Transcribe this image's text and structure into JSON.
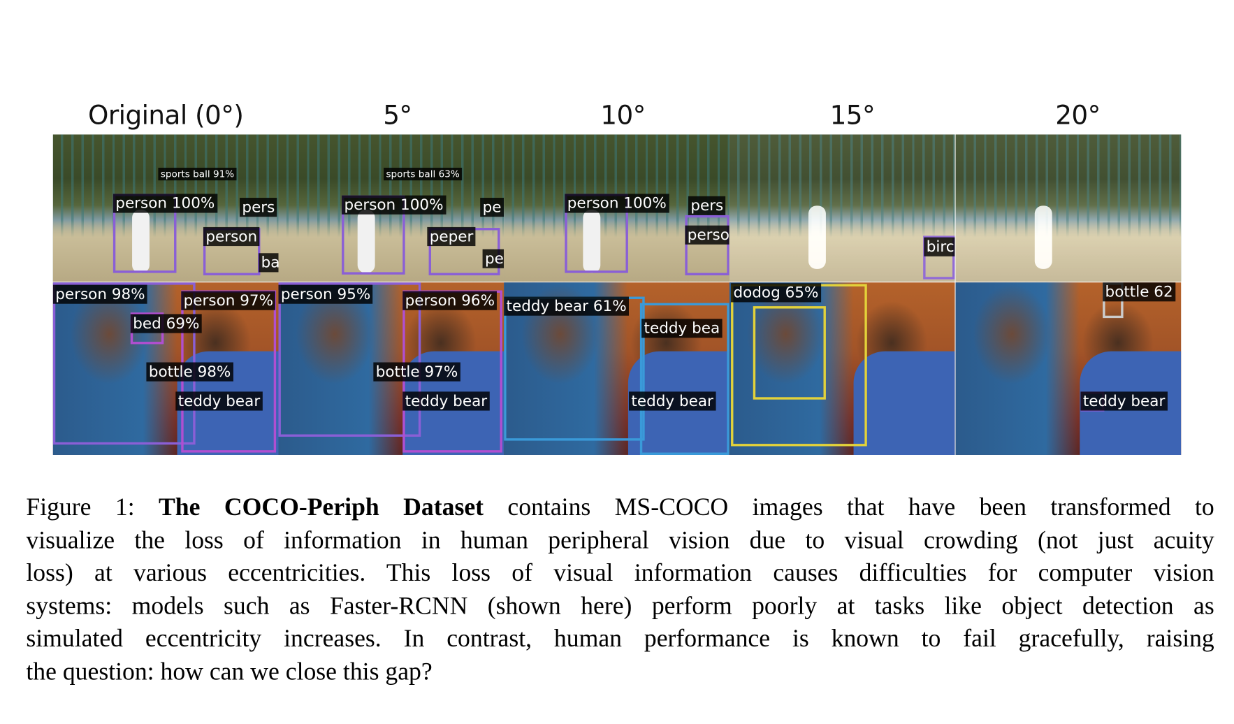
{
  "figure": {
    "column_headers": [
      "Original (0°)",
      "5°",
      "10°",
      "15°",
      "20°"
    ],
    "panels": [
      {
        "top": [
          "sports ball 91%",
          "person 100%",
          "pers",
          "person",
          "ba"
        ],
        "bottom": [
          "person 98%",
          "person 97%",
          "bed 69%",
          "bottle 98%",
          "teddy bear"
        ]
      },
      {
        "top": [
          "sports ball 63%",
          "person 100%",
          "pe",
          "pe",
          "peper"
        ],
        "bottom": [
          "person 95%",
          "person 96%",
          "bottle 97%",
          "teddy bear"
        ]
      },
      {
        "top": [
          "person 100%",
          "pers",
          "person"
        ],
        "bottom": [
          "teddy bear 61%",
          "teddy bea",
          "teddy bear"
        ]
      },
      {
        "top": [
          "birc"
        ],
        "bottom": [
          "dodog 65%"
        ]
      },
      {
        "top": [],
        "bottom": [
          "bottle 62",
          "teddy bear"
        ]
      }
    ],
    "box_colors": {
      "person": "#8a5fd6",
      "teddy_bear": "#3a9ad9",
      "dog": "#e3d23a",
      "bed": "#b04fd0",
      "bottle": "#4caf50"
    }
  },
  "caption": {
    "label": "Figure 1: ",
    "title": "The COCO-Periph Dataset",
    "lines": [
      " contains MS-COCO images that have been transformed to",
      "visualize the loss of information in human peripheral vision due to visual crowding (not just acuity",
      "loss) at various eccentricities. This loss of visual information causes difficulties for computer vision",
      "systems: models such as Faster-RCNN (shown here) perform poorly at tasks like object detection as",
      "simulated eccentricity increases. In contrast, human performance is known to fail gracefully, raising",
      "the question: how can we close this gap?"
    ]
  }
}
